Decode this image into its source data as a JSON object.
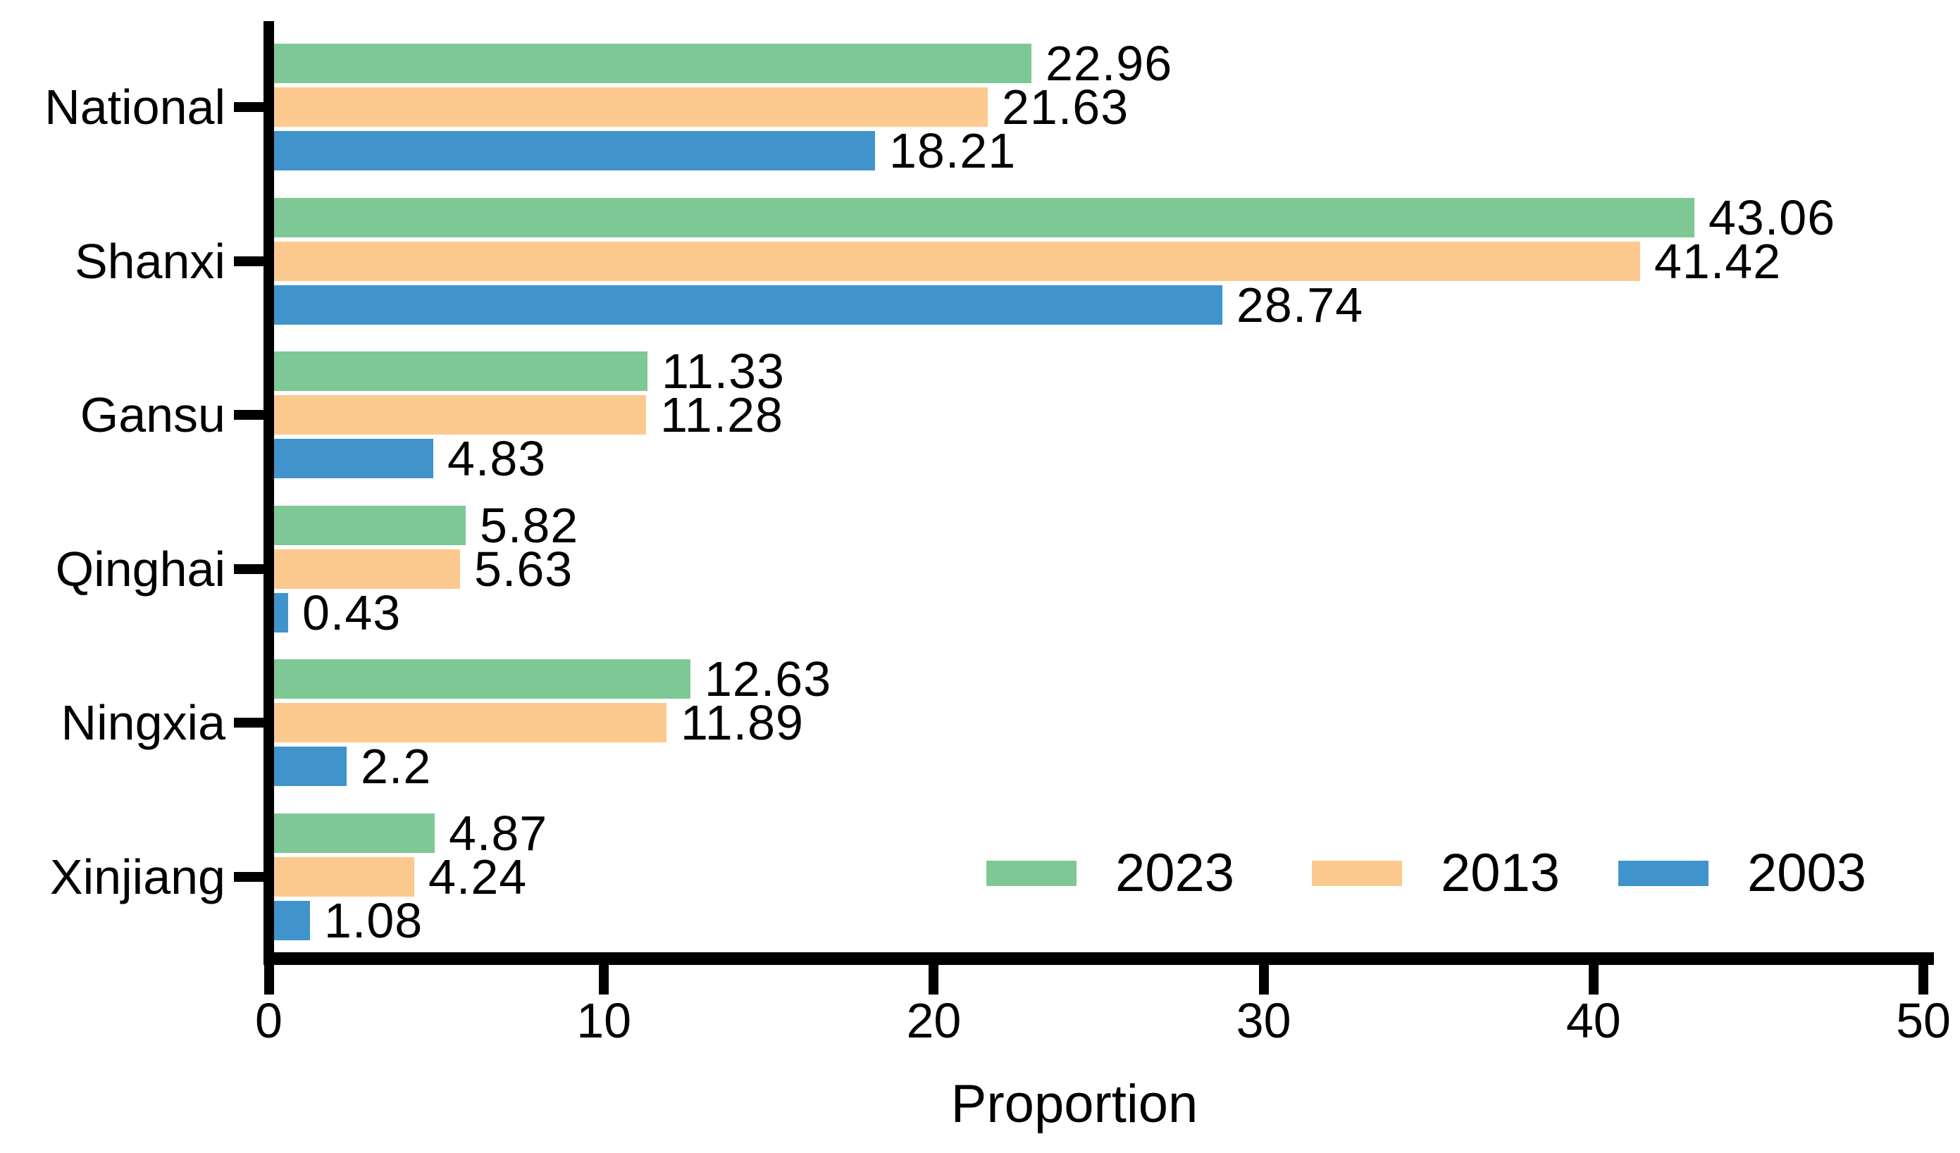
{
  "chart_data": {
    "type": "bar",
    "orientation": "horizontal",
    "categories": [
      "National",
      "Shanxi",
      "Gansu",
      "Qinghai",
      "Ningxia",
      "Xinjiang"
    ],
    "series": [
      {
        "name": "2023",
        "color": "#7dc894",
        "values": [
          22.96,
          43.06,
          11.33,
          5.82,
          12.63,
          4.87
        ]
      },
      {
        "name": "2013",
        "color": "#fcca8f",
        "values": [
          21.63,
          41.42,
          11.28,
          5.63,
          11.89,
          4.24
        ]
      },
      {
        "name": "2003",
        "color": "#4094cb",
        "values": [
          18.21,
          28.74,
          4.83,
          0.43,
          2.2,
          1.08
        ]
      }
    ],
    "xlabel": "Proportion",
    "xlim": [
      0,
      50
    ],
    "xticks": [
      0,
      10,
      20,
      30,
      40,
      50
    ],
    "value_labels_shown": true,
    "legend_entries": [
      "2023",
      "2013",
      "2003"
    ],
    "legend_position": "inside-bottom-right",
    "grid": false,
    "axis_color": "#000000",
    "text_color": "#000000",
    "background_color": "#ffffff"
  }
}
